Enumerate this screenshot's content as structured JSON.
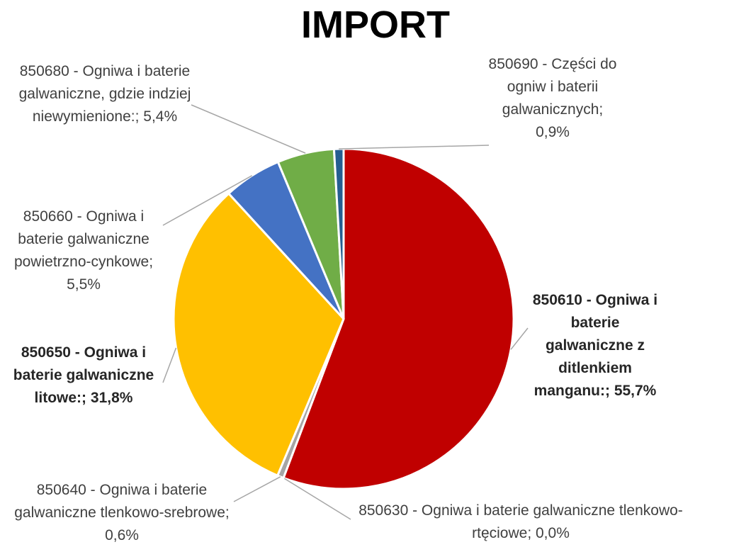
{
  "chart_data": {
    "type": "pie",
    "title": "IMPORT",
    "categories": [
      "850610 - Ogniwa i baterie galwaniczne z ditlenkiem manganu:;",
      "850630 - Ogniwa i baterie galwaniczne tlenkowo-rtęciowe;",
      "850640 - Ogniwa i baterie galwaniczne tlenkowo-srebrowe;",
      "850650 - Ogniwa i baterie galwaniczne litowe:;",
      "850660 - Ogniwa i baterie galwaniczne powietrzno-cynkowe;",
      "850680 - Ogniwa i baterie galwaniczne, gdzie indziej niewymienione:;",
      "850690 - Części do ogniw i baterii galwanicznych;"
    ],
    "values": [
      55.7,
      0.0,
      0.6,
      31.8,
      5.5,
      5.4,
      0.9
    ],
    "value_labels": [
      "55,7%",
      "0,0%",
      "0,6%",
      "31,8%",
      "5,5%",
      "5,4%",
      "0,9%"
    ],
    "colors": [
      "#c00000",
      "#7f7f7f",
      "#a5a5a5",
      "#ffc000",
      "#4472c4",
      "#70ad47",
      "#255e91"
    ]
  }
}
